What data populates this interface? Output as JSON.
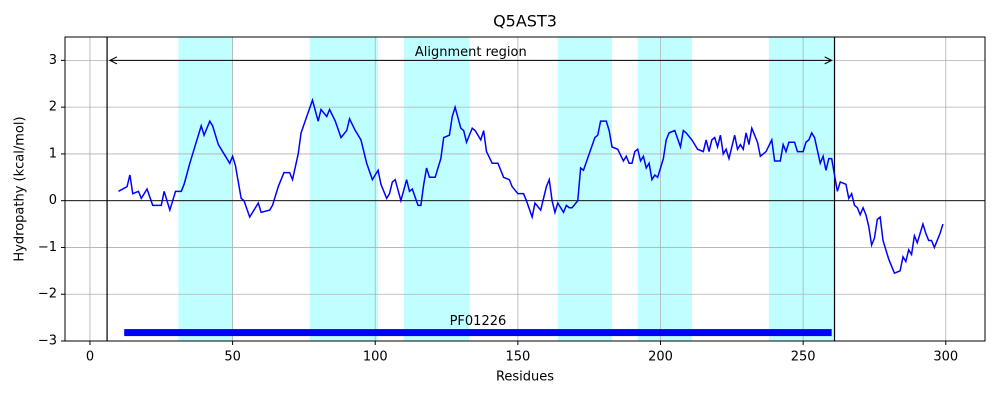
{
  "chart_data": {
    "type": "line",
    "title": "Q5AST3",
    "x_label": "Residues",
    "y_label": "Hydropathy (kcal/mol)",
    "color": "#0000ff",
    "x": [
      10,
      13,
      14,
      15,
      17,
      18,
      20,
      22,
      25,
      26,
      28,
      30,
      32,
      33,
      35,
      37,
      39,
      40,
      42,
      43,
      45,
      47,
      49,
      50,
      51,
      53,
      54,
      56,
      57,
      59,
      60,
      63,
      64,
      66,
      68,
      70,
      71,
      73,
      74,
      76,
      78,
      80,
      81,
      83,
      84,
      86,
      88,
      90,
      91,
      93,
      95,
      97,
      99,
      101,
      102,
      104,
      105,
      106,
      107,
      109,
      111,
      112,
      113,
      115,
      116,
      117,
      118,
      119,
      121,
      123,
      124,
      126,
      127,
      128,
      130,
      131,
      132,
      134,
      135,
      137,
      138,
      139,
      141,
      143,
      145,
      147,
      148,
      150,
      152,
      153,
      155,
      156,
      158,
      160,
      161,
      162,
      163,
      164,
      166,
      167,
      168,
      169,
      171,
      172,
      173,
      175,
      177,
      178,
      179,
      181,
      182,
      183,
      185,
      187,
      188,
      189,
      190,
      191,
      192,
      193,
      194,
      195,
      196,
      197,
      198,
      199,
      201,
      202,
      203,
      205,
      207,
      208,
      209,
      211,
      213,
      215,
      216,
      217,
      218,
      219,
      220,
      221,
      222,
      223,
      224,
      226,
      227,
      228,
      229,
      230,
      231,
      232,
      234,
      235,
      237,
      239,
      240,
      242,
      243,
      244,
      245,
      247,
      248,
      250,
      251,
      252,
      253,
      254,
      256,
      257,
      258,
      259,
      260,
      261,
      262,
      263,
      265,
      266,
      267,
      268,
      269,
      270,
      271,
      272,
      273,
      274,
      275,
      276,
      277,
      278,
      280,
      282,
      284,
      285,
      286,
      287,
      288,
      289,
      290,
      292,
      293,
      294,
      295,
      296,
      298,
      299
    ],
    "values": [
      0.2,
      0.3,
      0.55,
      0.15,
      0.2,
      0.05,
      0.25,
      -0.1,
      -0.1,
      0.2,
      -0.2,
      0.2,
      0.2,
      0.35,
      0.8,
      1.2,
      1.6,
      1.4,
      1.7,
      1.6,
      1.2,
      1.0,
      0.8,
      0.95,
      0.75,
      0.05,
      0.0,
      -0.35,
      -0.25,
      -0.05,
      -0.25,
      -0.2,
      -0.1,
      0.3,
      0.6,
      0.6,
      0.45,
      1.0,
      1.45,
      1.8,
      2.15,
      1.7,
      1.95,
      1.8,
      1.95,
      1.7,
      1.35,
      1.5,
      1.75,
      1.5,
      1.3,
      0.8,
      0.45,
      0.65,
      0.35,
      0.05,
      0.15,
      0.4,
      0.45,
      0.0,
      0.45,
      0.2,
      0.25,
      -0.1,
      -0.1,
      0.35,
      0.7,
      0.5,
      0.5,
      0.9,
      1.35,
      1.4,
      1.8,
      2.0,
      1.55,
      1.5,
      1.25,
      1.55,
      1.5,
      1.3,
      1.5,
      1.05,
      0.8,
      0.8,
      0.5,
      0.45,
      0.3,
      0.15,
      0.15,
      0.0,
      -0.35,
      -0.05,
      -0.2,
      0.3,
      0.45,
      0.0,
      -0.25,
      -0.05,
      -0.25,
      -0.1,
      -0.15,
      -0.15,
      0.0,
      0.7,
      0.65,
      1.0,
      1.35,
      1.4,
      1.7,
      1.7,
      1.5,
      1.15,
      1.1,
      0.85,
      0.95,
      0.8,
      0.8,
      1.05,
      1.1,
      0.85,
      0.95,
      0.7,
      0.8,
      0.45,
      0.55,
      0.5,
      0.9,
      1.3,
      1.45,
      1.5,
      1.15,
      1.5,
      1.45,
      1.3,
      1.1,
      1.05,
      1.3,
      1.05,
      1.3,
      1.35,
      1.15,
      1.4,
      1.0,
      1.1,
      0.9,
      1.4,
      1.1,
      1.2,
      1.1,
      1.45,
      1.2,
      1.55,
      1.25,
      0.95,
      1.05,
      1.3,
      0.85,
      0.85,
      1.2,
      1.05,
      1.25,
      1.25,
      1.05,
      1.05,
      1.25,
      1.3,
      1.45,
      1.35,
      0.8,
      0.95,
      0.65,
      0.9,
      0.9,
      0.55,
      0.2,
      0.4,
      0.35,
      0.05,
      0.15,
      -0.1,
      -0.15,
      -0.3,
      -0.15,
      -0.3,
      -0.55,
      -0.95,
      -0.8,
      -0.4,
      -0.35,
      -0.85,
      -1.25,
      -1.55,
      -1.5,
      -1.2,
      -1.3,
      -1.05,
      -1.15,
      -0.75,
      -0.9,
      -0.5,
      -0.7,
      -0.85,
      -0.85,
      -1.0,
      -0.7,
      -0.5
    ],
    "xlim": [
      -8.75,
      313.75
    ],
    "ylim": [
      -3,
      3.5
    ],
    "xticks": [
      0,
      50,
      100,
      150,
      200,
      250,
      300
    ],
    "yticks": [
      {
        "value": -3,
        "label": "−3"
      },
      {
        "value": -2,
        "label": "−2"
      },
      {
        "value": -1,
        "label": "−1"
      },
      0,
      1,
      2,
      3
    ],
    "grid": true,
    "hline": 0,
    "regions": [
      [
        31,
        50
      ],
      [
        77,
        101
      ],
      [
        110,
        133
      ],
      [
        164,
        183
      ],
      [
        192,
        211
      ],
      [
        238,
        261
      ]
    ],
    "region_color": "#bfffff",
    "vlines": [
      6,
      261
    ],
    "annotation": {
      "text": "Alignment region",
      "start": 7,
      "end": 260,
      "y": 3
    },
    "domain": {
      "label": "PF01226",
      "start": 12,
      "end": 260,
      "y": -2.82,
      "color": "#0000ff"
    }
  }
}
